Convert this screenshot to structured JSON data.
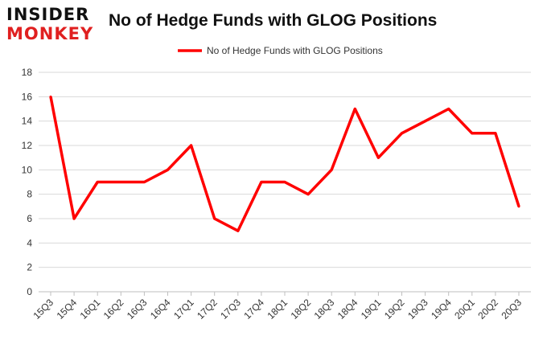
{
  "logo": {
    "line1": "INSIDER",
    "line2": "MONKEY"
  },
  "colors": {
    "series": "#ff0000",
    "grid": "#d9d9d9",
    "axis": "#bfbfbf",
    "text": "#333333",
    "brand_red": "#e02020"
  },
  "chart_data": {
    "type": "line",
    "title": "No of Hedge Funds with GLOG Positions",
    "xlabel": "",
    "ylabel": "",
    "categories": [
      "15Q3",
      "15Q4",
      "16Q1",
      "16Q2",
      "16Q3",
      "16Q4",
      "17Q1",
      "17Q2",
      "17Q3",
      "17Q4",
      "18Q1",
      "18Q2",
      "18Q3",
      "18Q4",
      "19Q1",
      "19Q2",
      "19Q3",
      "19Q4",
      "20Q1",
      "20Q2",
      "20Q3"
    ],
    "series": [
      {
        "name": "No of Hedge Funds with GLOG Positions",
        "values": [
          16,
          6,
          9,
          9,
          9,
          10,
          12,
          6,
          5,
          9,
          9,
          8,
          10,
          15,
          11,
          13,
          14,
          15,
          13,
          13,
          7
        ]
      }
    ],
    "ylim": [
      0,
      18
    ],
    "yticks": [
      0,
      2,
      4,
      6,
      8,
      10,
      12,
      14,
      16,
      18
    ],
    "grid": true,
    "legend": "top-center"
  }
}
